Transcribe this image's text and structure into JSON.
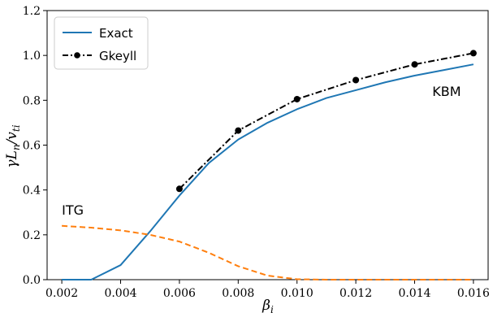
{
  "chart_data": {
    "type": "line",
    "xlabel": "β_i",
    "ylabel": "γL_n/v_ti",
    "xlim": [
      0.0015,
      0.0165
    ],
    "ylim": [
      0.0,
      1.2
    ],
    "x_ticks": [
      "0.002",
      "0.004",
      "0.006",
      "0.008",
      "0.010",
      "0.012",
      "0.014",
      "0.016"
    ],
    "y_ticks": [
      "0.0",
      "0.2",
      "0.4",
      "0.6",
      "0.8",
      "1.0",
      "1.2"
    ],
    "grid": false,
    "legend_position": "top-left",
    "series": [
      {
        "name": "Exact",
        "color": "#1f77b4",
        "style": "solid",
        "x": [
          0.002,
          0.003,
          0.004,
          0.005,
          0.006,
          0.007,
          0.008,
          0.009,
          0.01,
          0.011,
          0.012,
          0.013,
          0.014,
          0.015,
          0.016
        ],
        "y": [
          0.0,
          0.0,
          0.065,
          0.215,
          0.375,
          0.52,
          0.625,
          0.7,
          0.76,
          0.81,
          0.845,
          0.88,
          0.91,
          0.935,
          0.96
        ]
      },
      {
        "name": "Gkeyll",
        "color": "#000000",
        "style": "dashdot-marker",
        "x": [
          0.006,
          0.008,
          0.01,
          0.012,
          0.014,
          0.016
        ],
        "y": [
          0.405,
          0.665,
          0.805,
          0.89,
          0.96,
          1.01
        ]
      },
      {
        "name": "",
        "color": "#ff7f0e",
        "style": "dashed",
        "x": [
          0.002,
          0.003,
          0.004,
          0.005,
          0.006,
          0.007,
          0.008,
          0.009,
          0.01,
          0.011,
          0.012,
          0.013,
          0.014,
          0.015,
          0.016
        ],
        "y": [
          0.24,
          0.232,
          0.22,
          0.2,
          0.17,
          0.12,
          0.06,
          0.018,
          0.002,
          0.0,
          0.0,
          0.0,
          0.0,
          0.0,
          0.0
        ]
      }
    ],
    "annotations": [
      {
        "text": "ITG",
        "x": 0.002,
        "y": 0.29
      },
      {
        "text": "KBM",
        "x": 0.0146,
        "y": 0.82
      }
    ]
  }
}
